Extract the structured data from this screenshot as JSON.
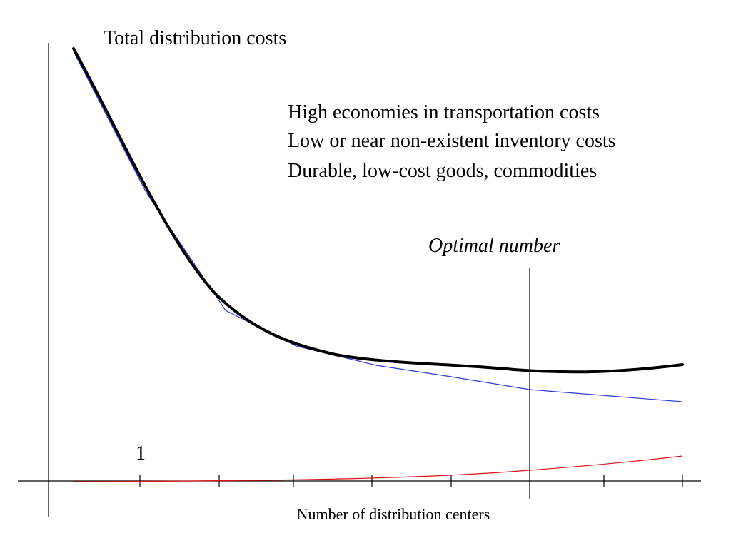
{
  "title": "Total distribution costs",
  "conditions": [
    "High economies in transportation costs",
    "Low or near non-existent inventory costs",
    "Durable, low-cost goods, commodities"
  ],
  "optimal_label": "Optimal number",
  "tick_label": "1",
  "xlabel": "Number of distribution centers",
  "colors": {
    "total_curve": "#000000",
    "transport_curve": "#2a3bd6",
    "inventory_curve": "#e01010",
    "axes": "#000000"
  }
}
